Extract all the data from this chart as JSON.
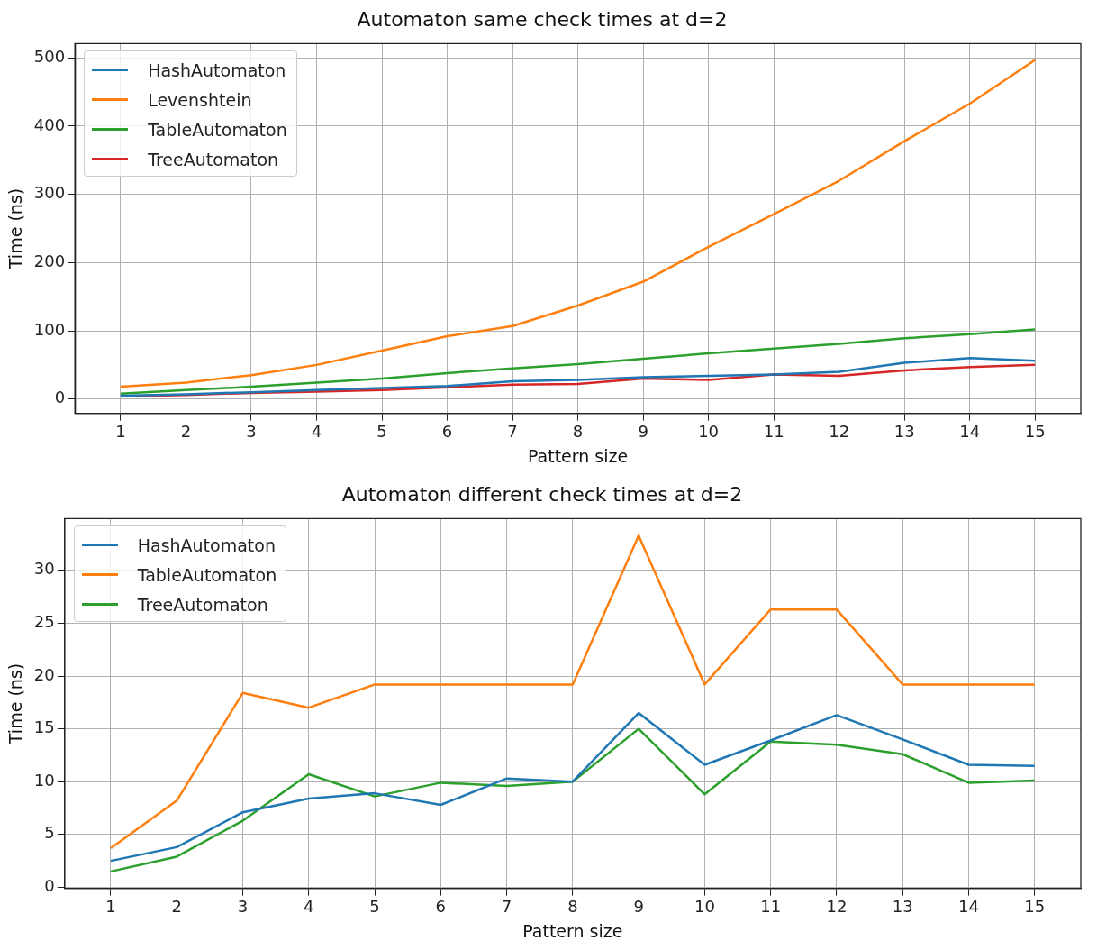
{
  "chart_data": [
    {
      "type": "line",
      "title": "Automaton same check times at d=2",
      "xlabel": "Pattern size",
      "ylabel": "Time (ns)",
      "x": [
        1,
        2,
        3,
        4,
        5,
        6,
        7,
        8,
        9,
        10,
        11,
        12,
        13,
        14,
        15
      ],
      "xlim": [
        0.3,
        15.7
      ],
      "xticks": [
        1,
        2,
        3,
        4,
        5,
        6,
        7,
        8,
        9,
        10,
        11,
        12,
        13,
        14,
        15
      ],
      "ylim": [
        -21,
        521
      ],
      "yticks": [
        0,
        100,
        200,
        300,
        400,
        500
      ],
      "grid": true,
      "legend": "top left",
      "series": [
        {
          "name": "HashAutomaton",
          "color": "#1f77b4",
          "values": [
            5,
            7,
            10,
            13,
            16,
            19,
            26,
            28,
            32,
            34,
            36,
            40,
            53,
            60,
            56
          ]
        },
        {
          "name": "Levenshtein",
          "color": "#ff7f0e",
          "values": [
            18,
            24,
            35,
            50,
            71,
            92,
            107,
            137,
            172,
            223,
            271,
            320,
            378,
            433,
            497
          ]
        },
        {
          "name": "TableAutomaton",
          "color": "#2ca02c",
          "values": [
            8,
            13,
            18,
            24,
            30,
            38,
            45,
            51,
            59,
            67,
            74,
            81,
            89,
            95,
            102
          ]
        },
        {
          "name": "TreeAutomaton",
          "color": "#d62728",
          "values": [
            4,
            6,
            9,
            11,
            13,
            17,
            21,
            22,
            30,
            28,
            36,
            34,
            42,
            47,
            50
          ]
        }
      ]
    },
    {
      "type": "line",
      "title": "Automaton different check times at d=2",
      "xlabel": "Pattern size",
      "ylabel": "Time (ns)",
      "x": [
        1,
        2,
        3,
        4,
        5,
        6,
        7,
        8,
        9,
        10,
        11,
        12,
        13,
        14,
        15
      ],
      "xlim": [
        0.3,
        15.7
      ],
      "xticks": [
        1,
        2,
        3,
        4,
        5,
        6,
        7,
        8,
        9,
        10,
        11,
        12,
        13,
        14,
        15
      ],
      "ylim": [
        -0.1,
        34.9
      ],
      "yticks": [
        0,
        5,
        10,
        15,
        20,
        25,
        30
      ],
      "grid": true,
      "legend": "top left",
      "series": [
        {
          "name": "HashAutomaton",
          "color": "#1f77b4",
          "values": [
            2.5,
            3.8,
            7.1,
            8.4,
            8.9,
            7.8,
            10.3,
            10.0,
            16.5,
            11.6,
            13.9,
            16.3,
            14.0,
            11.6,
            11.5
          ]
        },
        {
          "name": "TableAutomaton",
          "color": "#ff7f0e",
          "values": [
            3.7,
            8.2,
            18.4,
            17.0,
            19.2,
            19.2,
            19.2,
            19.2,
            33.3,
            19.2,
            26.3,
            26.3,
            19.2,
            19.2,
            19.2
          ]
        },
        {
          "name": "TreeAutomaton",
          "color": "#2ca02c",
          "values": [
            1.5,
            2.9,
            6.3,
            10.7,
            8.6,
            9.9,
            9.6,
            10.0,
            15.0,
            8.8,
            13.8,
            13.5,
            12.6,
            9.9,
            10.1
          ]
        }
      ]
    }
  ]
}
